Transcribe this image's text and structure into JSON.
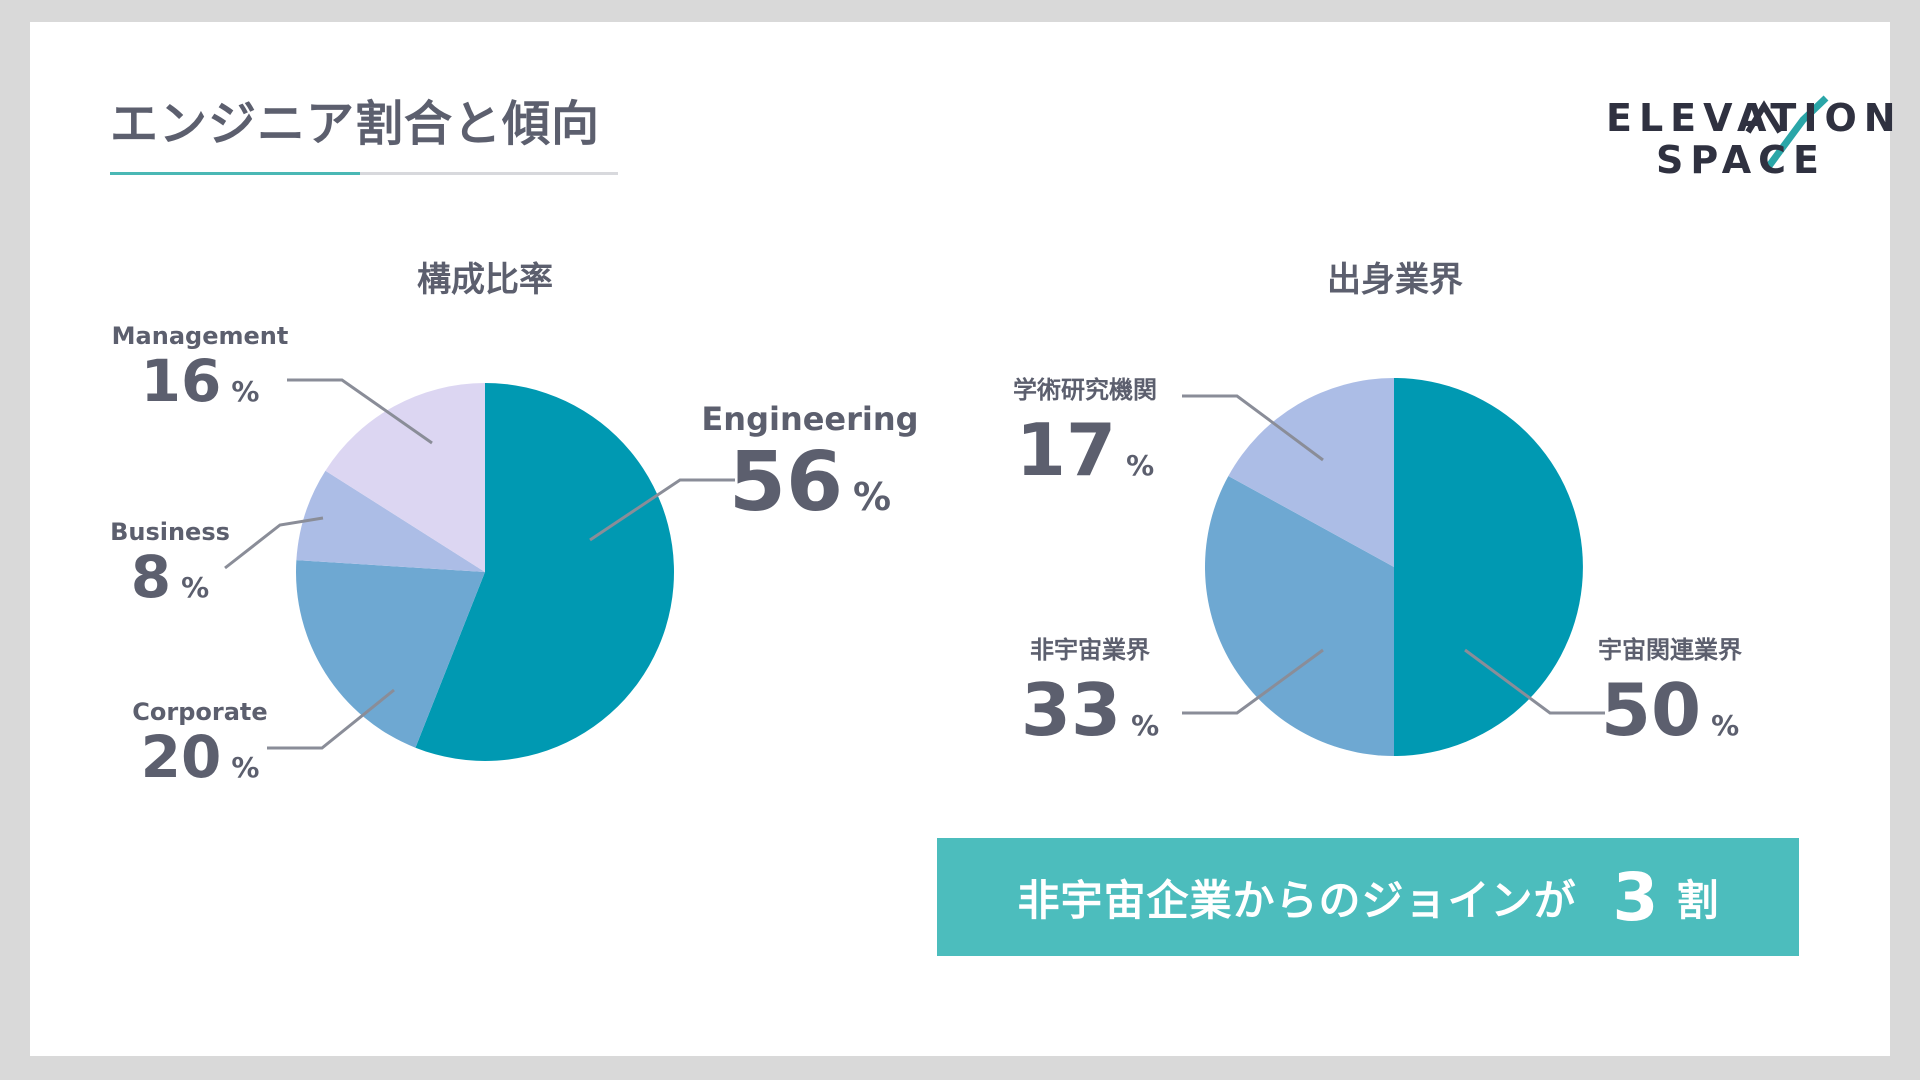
{
  "slide": {
    "title": "エンジニア割合と傾向",
    "logo": {
      "line1": "ELEVATION",
      "line2": "SPACE"
    },
    "accent_color": "#4ab8b5",
    "banner": {
      "text": "非宇宙企業からのジョインが",
      "number": "3",
      "unit": "割",
      "color": "#4cbdbd"
    }
  },
  "chart_data": [
    {
      "type": "pie",
      "title": "構成比率",
      "unit": "%",
      "categories": [
        "Engineering",
        "Corporate",
        "Business",
        "Management"
      ],
      "values": [
        56,
        20,
        8,
        16
      ],
      "colors": [
        "#0099b2",
        "#6ea8d2",
        "#acbde6",
        "#dcd6f2"
      ]
    },
    {
      "type": "pie",
      "title": "出身業界",
      "unit": "%",
      "categories": [
        "宇宙関連業界",
        "非宇宙業界",
        "学術研究機関"
      ],
      "values": [
        50,
        33,
        17
      ],
      "colors": [
        "#0099b2",
        "#6ea8d2",
        "#acbde6"
      ]
    }
  ]
}
